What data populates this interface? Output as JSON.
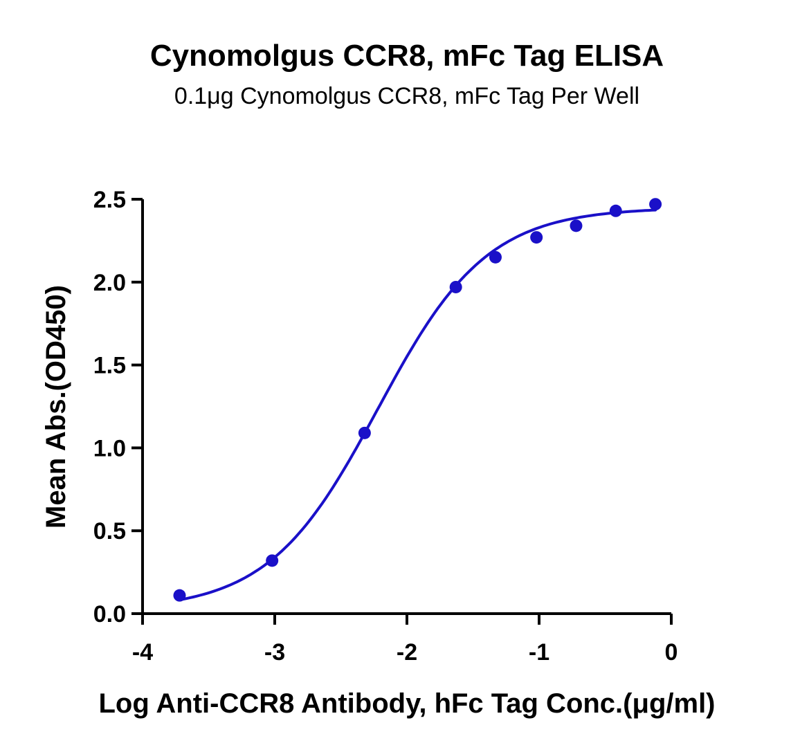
{
  "chart_data": {
    "type": "scatter",
    "title": "Cynomolgus CCR8, mFc Tag ELISA",
    "subtitle": "0.1μg Cynomolgus CCR8, mFc Tag Per Well",
    "xlabel": "Log Anti-CCR8 Antibody, hFc Tag Conc.(μg/ml)",
    "ylabel": "Mean Abs.(OD450)",
    "xlim": [
      -4,
      0
    ],
    "ylim": [
      0,
      2.5
    ],
    "x_ticks": [
      -4,
      -3,
      -2,
      -1,
      0
    ],
    "x_tick_labels": [
      "-4",
      "-3",
      "-2",
      "-1",
      "0"
    ],
    "y_ticks": [
      0,
      0.5,
      1.0,
      1.5,
      2.0,
      2.5
    ],
    "y_tick_labels": [
      "0.0",
      "0.5",
      "1.0",
      "1.5",
      "2.0",
      "2.5"
    ],
    "grid": false,
    "series": [
      {
        "color": "#1a10c8",
        "x": [
          -3.72,
          -3.02,
          -2.32,
          -1.63,
          -1.33,
          -1.02,
          -0.72,
          -0.42,
          -0.12
        ],
        "y": [
          0.11,
          0.32,
          1.09,
          1.97,
          2.15,
          2.27,
          2.34,
          2.43,
          2.47
        ]
      }
    ],
    "fit_curve": {
      "model": "4PL",
      "bottom": 0.02,
      "top": 2.45,
      "logEC50": -2.22,
      "hill": 1.05,
      "x_range": [
        -3.72,
        -0.12
      ]
    }
  }
}
